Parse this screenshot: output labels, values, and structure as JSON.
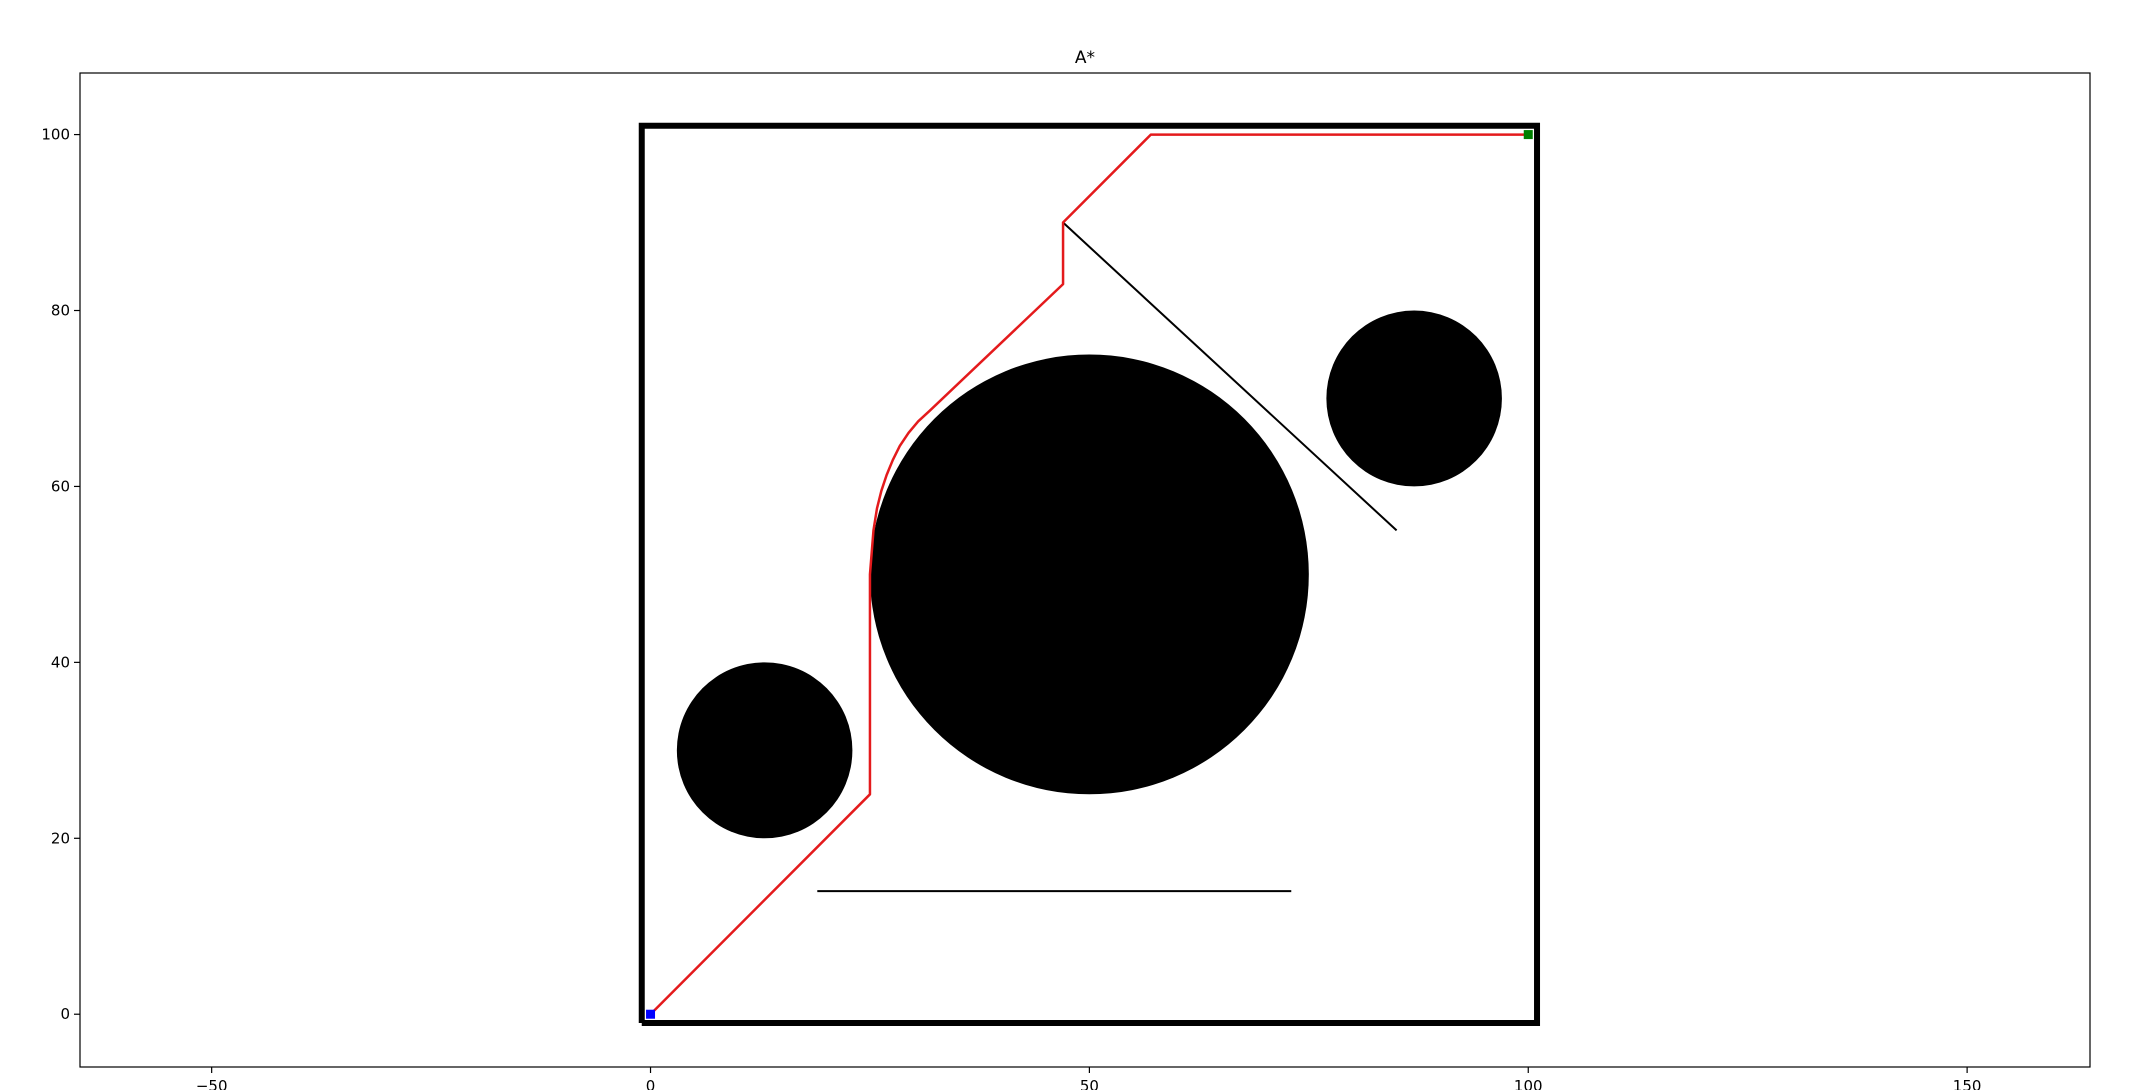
{
  "chart_data": {
    "type": "scatter",
    "title": "A*",
    "xlabel": "",
    "ylabel": "",
    "xlim": [
      -65,
      164
    ],
    "ylim": [
      -6,
      107
    ],
    "grid": false,
    "xticks": [
      -50,
      0,
      50,
      100,
      150
    ],
    "yticks": [
      0,
      20,
      40,
      60,
      80,
      100
    ],
    "xtick_labels": [
      "−50",
      "0",
      "50",
      "100",
      "150"
    ],
    "ytick_labels": [
      "0",
      "20",
      "40",
      "60",
      "80",
      "100"
    ],
    "boundary": {
      "x": [
        -1,
        101,
        101,
        -1,
        -1
      ],
      "y": [
        -1,
        -1,
        101,
        101,
        -1
      ],
      "color": "#000000"
    },
    "obstacles": {
      "circles": [
        {
          "cx": 13,
          "cy": 30,
          "r": 10
        },
        {
          "cx": 50,
          "cy": 50,
          "r": 25
        },
        {
          "cx": 87,
          "cy": 70,
          "r": 10
        }
      ],
      "lines": [
        {
          "x": [
            19,
            73
          ],
          "y": [
            14,
            14
          ]
        },
        {
          "x": [
            47,
            85
          ],
          "y": [
            90,
            55
          ]
        }
      ],
      "color": "#000000"
    },
    "path": {
      "color": "#e41a1c",
      "x": [
        0,
        25,
        25,
        25.2,
        25.4,
        25.8,
        26.3,
        26.9,
        27.6,
        28.4,
        29.4,
        30.5,
        31.8,
        47,
        47,
        57,
        100
      ],
      "y": [
        0,
        25,
        50,
        52.5,
        55,
        57.5,
        59.5,
        61.3,
        63,
        64.6,
        66.1,
        67.4,
        68.6,
        83,
        90,
        100,
        100
      ]
    },
    "start": {
      "x": 0,
      "y": 0,
      "color": "#0000ff"
    },
    "goal": {
      "x": 100,
      "y": 100,
      "color": "#008000"
    }
  }
}
